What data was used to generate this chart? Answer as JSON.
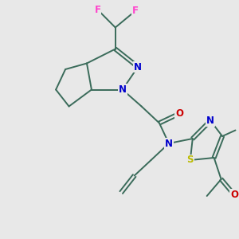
{
  "background_color": "#e8e8e8",
  "bond_color": "#3a6b5a",
  "bond_lw": 1.4,
  "F_color": "#ff44cc",
  "N_color": "#0000cc",
  "O_color": "#cc0000",
  "S_color": "#bbbb00",
  "figsize": [
    3.0,
    3.0
  ],
  "dpi": 100,
  "xlim": [
    0,
    10
  ],
  "ylim": [
    0,
    10
  ]
}
